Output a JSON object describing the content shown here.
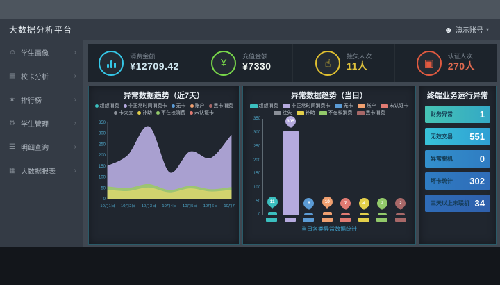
{
  "header": {
    "title": "大数据分析平台",
    "user_name": "演示账号",
    "caret": "▾"
  },
  "sidebar": {
    "chevron": "›",
    "items": [
      {
        "label": "学生画像",
        "icon": "student-profile-icon",
        "glyph": "☺"
      },
      {
        "label": "校卡分析",
        "icon": "card-analysis-icon",
        "glyph": "▤"
      },
      {
        "label": "排行榜",
        "icon": "ranking-icon",
        "glyph": "★"
      },
      {
        "label": "学生管理",
        "icon": "student-manage-icon",
        "glyph": "⚙"
      },
      {
        "label": "明细查询",
        "icon": "detail-query-icon",
        "glyph": "☰"
      },
      {
        "label": "大数据报表",
        "icon": "bigdata-report-icon",
        "glyph": "▦"
      }
    ]
  },
  "kpis": [
    {
      "label": "消费金额",
      "value": "¥12709.42",
      "color": "#35c8e8",
      "value_color": "#cfe6ef",
      "icon": "consumption-icon",
      "icon_kind": "bars"
    },
    {
      "label": "充值金额",
      "value": "¥7330",
      "color": "#79d84a",
      "value_color": "#eef4ee",
      "icon": "recharge-icon",
      "icon_kind": "glyph",
      "glyph": "¥"
    },
    {
      "label": "挂失人次",
      "value": "11人",
      "color": "#e0c030",
      "value_color": "#dfc23c",
      "icon": "loss-report-icon",
      "icon_kind": "glyph",
      "glyph": "☝"
    },
    {
      "label": "认证人次",
      "value": "270人",
      "color": "#e05a40",
      "value_color": "#e06a50",
      "icon": "auth-icon",
      "icon_kind": "glyph",
      "glyph": "▣"
    }
  ],
  "chart_data": [
    {
      "type": "area",
      "title": "异常数据趋势（近7天）",
      "categories": [
        "10月1日",
        "10月2日",
        "10月3日",
        "10月4日",
        "10月5日",
        "10月6日",
        "10月7日"
      ],
      "ylim": [
        0,
        350
      ],
      "yticks": [
        0,
        50,
        100,
        150,
        200,
        250,
        300,
        350
      ],
      "series": [
        {
          "name": "非正常时间消费卡",
          "color": "#b5aade",
          "values": [
            150,
            200,
            330,
            120,
            215,
            185,
            290
          ]
        },
        {
          "name": "不在校消费",
          "color": "#9cc76a",
          "values": [
            55,
            48,
            66,
            38,
            58,
            42,
            52
          ]
        },
        {
          "name": "补助",
          "color": "#d6d46e",
          "values": [
            40,
            34,
            50,
            28,
            46,
            32,
            40
          ]
        }
      ],
      "legend": [
        {
          "label": "超额消费",
          "color": "#3bbfbf"
        },
        {
          "label": "非正常时间消费卡",
          "color": "#b5aade"
        },
        {
          "label": "无卡",
          "color": "#5b9bd5"
        },
        {
          "label": "账户",
          "color": "#f0a070"
        },
        {
          "label": "黑卡消费",
          "color": "#a86868"
        },
        {
          "label": "卡突变",
          "color": "#8a8f98"
        },
        {
          "label": "补助",
          "color": "#e3cf4a"
        },
        {
          "label": "不在校消费",
          "color": "#92c96a"
        },
        {
          "label": "未认证卡",
          "color": "#e07a72"
        }
      ]
    },
    {
      "type": "bar",
      "title": "异常数据趋势（当日）",
      "categories": [
        "超额消费",
        "非正常时间消费卡",
        "无卡",
        "账户",
        "未认证卡",
        "补助",
        "不在校消费",
        "黑卡消费"
      ],
      "values": [
        11,
        305,
        6,
        10,
        7,
        4,
        2,
        2
      ],
      "colors": [
        "#3bbfbf",
        "#b5aade",
        "#5b9bd5",
        "#f0a070",
        "#e07a72",
        "#e3cf4a",
        "#92c96a",
        "#a86868"
      ],
      "ylim": [
        0,
        350
      ],
      "yticks": [
        0,
        50,
        100,
        150,
        200,
        250,
        300,
        350
      ],
      "caption": "当日各类异常数据统计",
      "legend": [
        {
          "label": "超额消费",
          "color": "#3bbfbf"
        },
        {
          "label": "非正常时间消费卡",
          "color": "#b5aade"
        },
        {
          "label": "无卡",
          "color": "#5b9bd5"
        },
        {
          "label": "账户",
          "color": "#f0a070"
        },
        {
          "label": "未认证卡",
          "color": "#e07a72"
        },
        {
          "label": "挂失",
          "color": "#8a8f98"
        },
        {
          "label": "补助",
          "color": "#e3cf4a"
        },
        {
          "label": "不在校消费",
          "color": "#92c96a"
        },
        {
          "label": "黑卡消费",
          "color": "#a86868"
        }
      ]
    }
  ],
  "terminal": {
    "title": "终端业务运行异常",
    "rows": [
      {
        "label": "财务异常",
        "value": "1",
        "bg": [
          "#46c4b4",
          "#33a8c6"
        ]
      },
      {
        "label": "无效交易",
        "value": "551",
        "bg": [
          "#38c2d8",
          "#2f9fd4"
        ]
      },
      {
        "label": "异常脱机",
        "value": "0",
        "bg": [
          "#3390cc",
          "#2f7cc2"
        ]
      },
      {
        "label": "坏卡统计",
        "value": "302",
        "bg": [
          "#2f7cc2",
          "#2f6cb8"
        ]
      },
      {
        "label": "三天以上未联机",
        "value": "34",
        "bg": [
          "#2f6cb8",
          "#2f60ac"
        ]
      }
    ]
  }
}
